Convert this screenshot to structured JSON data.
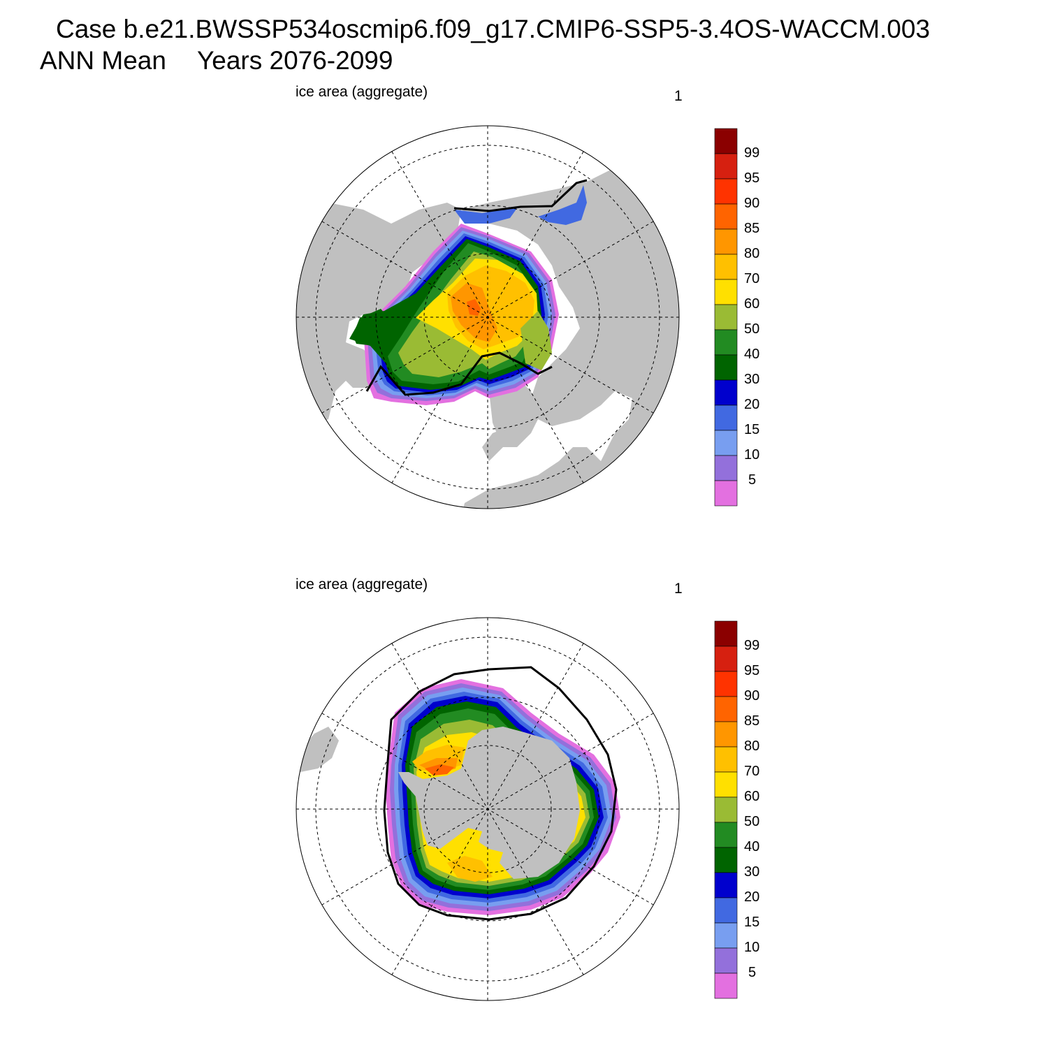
{
  "title": {
    "case_line": "Case b.e21.BWSSP534oscmip6.f09_g17.CMIP6-SSP5-3.4OS-WACCM.003",
    "season": "ANN Mean",
    "years": "Years 2076-2099"
  },
  "panels": [
    {
      "id": "north",
      "hemisphere": "Northern Hemisphere (Arctic polar stereographic)",
      "variable_label": "ice area  (aggregate)",
      "panel_number": "1"
    },
    {
      "id": "south",
      "hemisphere": "Southern Hemisphere (Antarctic polar stereographic)",
      "variable_label": "ice area  (aggregate)",
      "panel_number": "1"
    }
  ],
  "colorbar": {
    "units": "percent",
    "labels": [
      "99",
      "95",
      "90",
      "85",
      "80",
      "70",
      "60",
      "50",
      "40",
      "30",
      "20",
      "15",
      "10",
      "5"
    ],
    "colors": [
      "#8b0000",
      "#d62010",
      "#ff3300",
      "#ff6400",
      "#ff9600",
      "#ffc000",
      "#ffe000",
      "#9abb34",
      "#228b22",
      "#006400",
      "#0000cd",
      "#4169e1",
      "#789ef0",
      "#9370db",
      "#e370e0"
    ]
  },
  "colors": {
    "land": "#c0c0c0",
    "ocean": "#ffffff",
    "ice_edge_contour": "#000000"
  }
}
